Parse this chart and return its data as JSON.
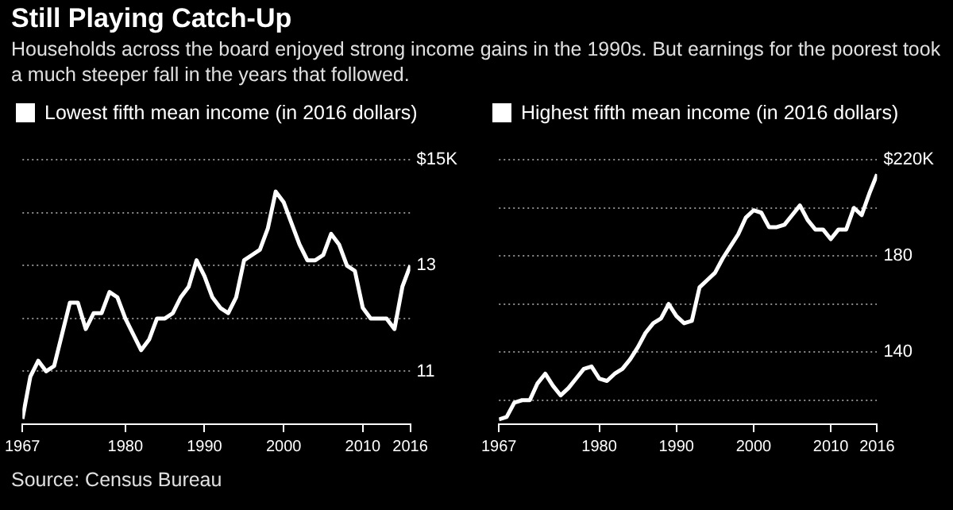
{
  "chart_data": [
    {
      "type": "line",
      "title": "Still Playing Catch-Up",
      "subtitle": "Households across the board enjoyed strong income gains in the 1990s. But earnings for the poorest took a much steeper fall in the years that followed.",
      "annotations": [
        "Source: Census Bureau"
      ],
      "x": [
        1967,
        1968,
        1969,
        1970,
        1971,
        1972,
        1973,
        1974,
        1975,
        1976,
        1977,
        1978,
        1979,
        1980,
        1981,
        1982,
        1983,
        1984,
        1985,
        1986,
        1987,
        1988,
        1989,
        1990,
        1991,
        1992,
        1993,
        1994,
        1995,
        1996,
        1997,
        1998,
        1999,
        2000,
        2001,
        2002,
        2003,
        2004,
        2005,
        2006,
        2007,
        2008,
        2009,
        2010,
        2011,
        2012,
        2013,
        2014,
        2015,
        2016
      ],
      "series": [
        {
          "name": "Lowest fifth mean income (in 2016 dollars)",
          "color": "#ffffff",
          "values": [
            10.1,
            10.9,
            11.2,
            11.0,
            11.1,
            11.7,
            12.3,
            12.3,
            11.8,
            12.1,
            12.1,
            12.5,
            12.4,
            12.0,
            11.7,
            11.4,
            11.6,
            12.0,
            12.0,
            12.1,
            12.4,
            12.6,
            13.1,
            12.8,
            12.4,
            12.2,
            12.1,
            12.4,
            13.1,
            13.2,
            13.3,
            13.7,
            14.4,
            14.2,
            13.8,
            13.4,
            13.1,
            13.1,
            13.2,
            13.6,
            13.4,
            13.0,
            12.9,
            12.2,
            12.0,
            12.0,
            12.0,
            11.8,
            12.6,
            13.0
          ]
        }
      ],
      "xlim": [
        1967,
        2016
      ],
      "xticks": [
        1967,
        1980,
        1990,
        2000,
        2010,
        2016
      ],
      "ylim": [
        10,
        15
      ],
      "yticks": [
        {
          "value": 11,
          "label": "11"
        },
        {
          "value": 12,
          "label": null
        },
        {
          "value": 13,
          "label": "13"
        },
        {
          "value": 14,
          "label": null
        },
        {
          "value": 15,
          "label": "$15K"
        }
      ],
      "grid": "y",
      "legend": "top left"
    },
    {
      "type": "line",
      "x": [
        1967,
        1968,
        1969,
        1970,
        1971,
        1972,
        1973,
        1974,
        1975,
        1976,
        1977,
        1978,
        1979,
        1980,
        1981,
        1982,
        1983,
        1984,
        1985,
        1986,
        1987,
        1988,
        1989,
        1990,
        1991,
        1992,
        1993,
        1994,
        1995,
        1996,
        1997,
        1998,
        1999,
        2000,
        2001,
        2002,
        2003,
        2004,
        2005,
        2006,
        2007,
        2008,
        2009,
        2010,
        2011,
        2012,
        2013,
        2014,
        2015,
        2016
      ],
      "series": [
        {
          "name": "Highest fifth mean income (in 2016 dollars)",
          "color": "#ffffff",
          "values": [
            112,
            113,
            119,
            120,
            120,
            127,
            131,
            126,
            122,
            125,
            129,
            133,
            134,
            129,
            128,
            131,
            133,
            137,
            142,
            148,
            152,
            154,
            160,
            155,
            152,
            153,
            167,
            170,
            173,
            179,
            184,
            189,
            196,
            199,
            198,
            192,
            192,
            193,
            197,
            201,
            195,
            191,
            191,
            187,
            191,
            191,
            200,
            197,
            206,
            214
          ]
        }
      ],
      "xlim": [
        1967,
        2016
      ],
      "xticks": [
        1967,
        1980,
        1990,
        2000,
        2010,
        2016
      ],
      "ylim": [
        110,
        220
      ],
      "yticks": [
        {
          "value": 120,
          "label": null
        },
        {
          "value": 140,
          "label": "140"
        },
        {
          "value": 160,
          "label": null
        },
        {
          "value": 180,
          "label": "180"
        },
        {
          "value": 200,
          "label": null
        },
        {
          "value": 220,
          "label": "$220K"
        }
      ],
      "grid": "y",
      "legend": "top left"
    }
  ]
}
